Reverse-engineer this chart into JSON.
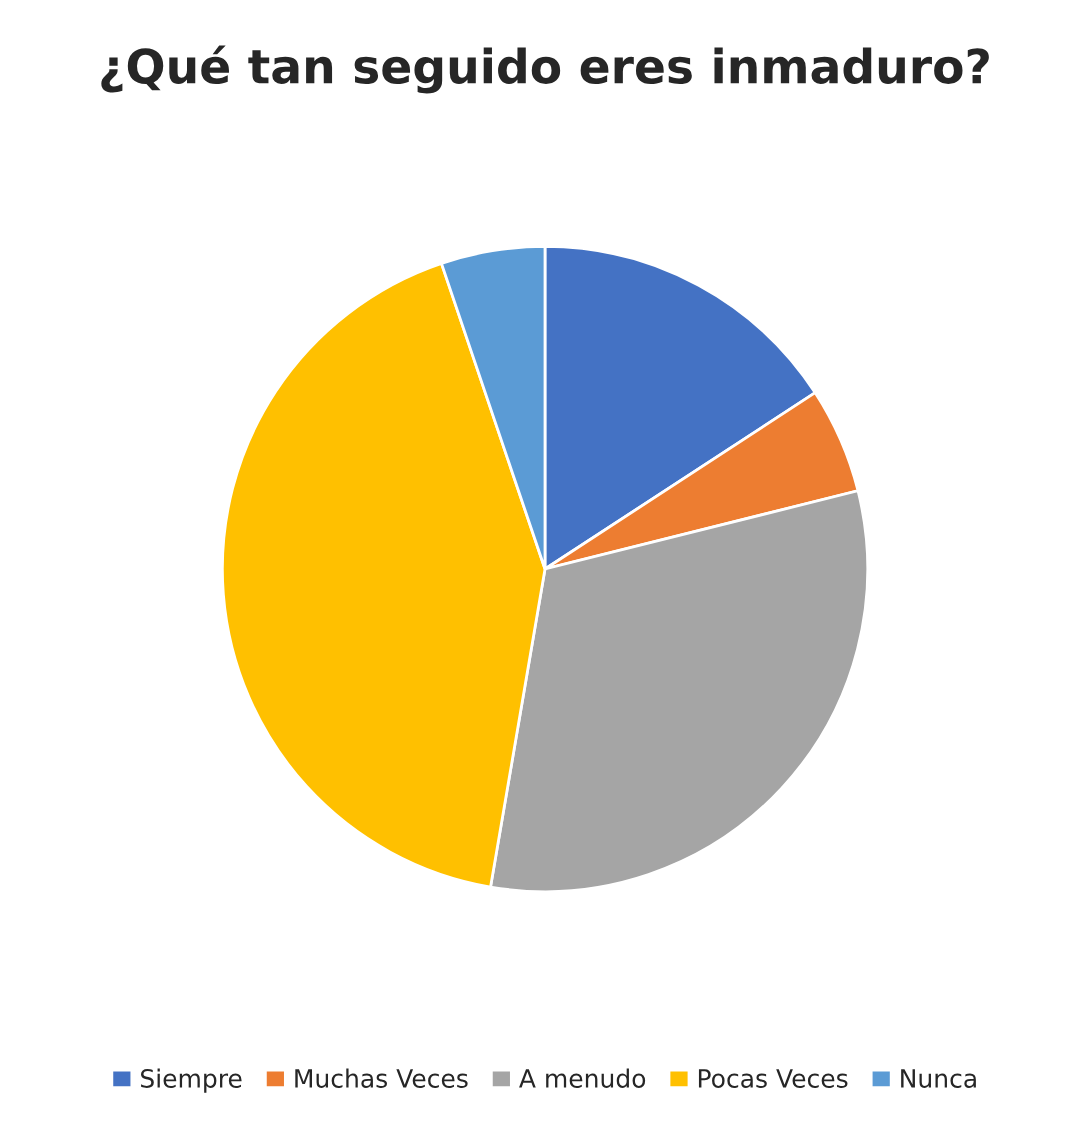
{
  "chart_data": {
    "type": "pie",
    "title": "¿Qué tan seguido eres inmaduro?",
    "categories": [
      "Siempre",
      "Muchas Veces",
      "A menudo",
      "Pocas Veces",
      "Nunca"
    ],
    "values": [
      15.8,
      5.3,
      31.6,
      42.1,
      5.2
    ],
    "colors": [
      "#4472c4",
      "#ed7d31",
      "#a5a5a5",
      "#ffc000",
      "#5b9bd5"
    ],
    "legend": "bottom"
  }
}
